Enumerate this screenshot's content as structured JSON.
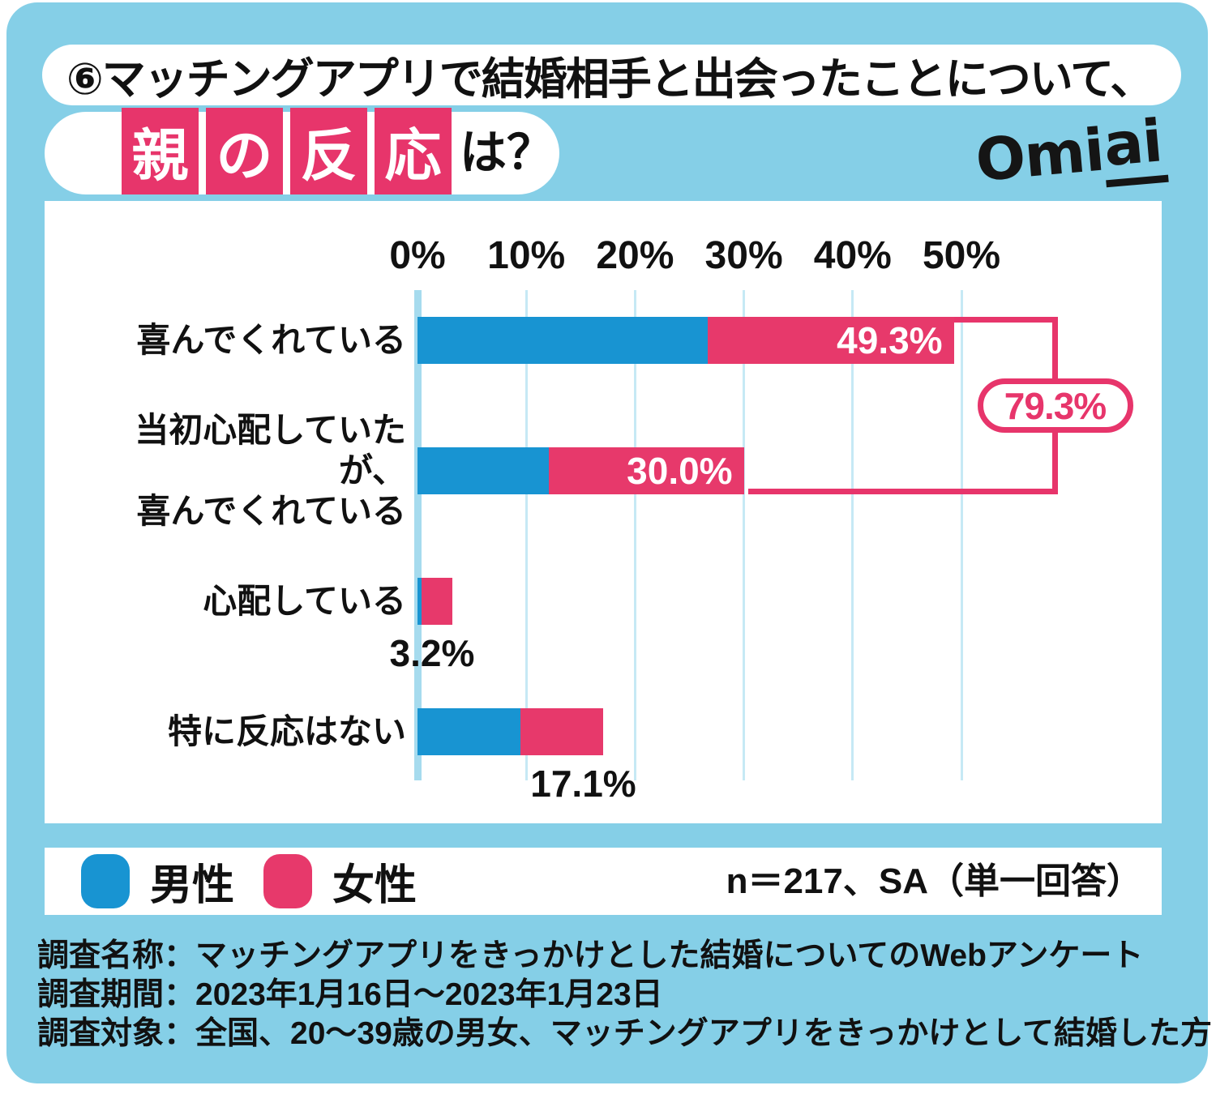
{
  "colors": {
    "background": "#85CFE7",
    "panel": "#FFFFFF",
    "male": "#1894D2",
    "female": "#E7396B",
    "accent": "#E7356B",
    "grid": "#C6E9F5",
    "grid_zero": "#A6DBEE",
    "text": "#111111"
  },
  "header": {
    "title_line1": "⑥マッチングアプリで結婚相手と出会ったことについて、",
    "highlight_chars": [
      "親",
      "の",
      "反",
      "応"
    ],
    "title_line2_suffix": "は？",
    "brand_prefix": "Omi",
    "brand_underlined": "ai"
  },
  "chart_data": {
    "type": "bar",
    "orientation": "horizontal",
    "stacked": true,
    "title": "マッチングアプリで結婚相手と出会ったことについて、親の反応は？",
    "categories": [
      "喜んでくれている",
      "当初心配していたが、\n喜んでくれている",
      "心配している",
      "特に反応はない"
    ],
    "series": [
      {
        "name": "男性",
        "color": "#1894D2",
        "values": [
          26.7,
          12.1,
          0.4,
          9.5
        ]
      },
      {
        "name": "女性",
        "color": "#E7396B",
        "values": [
          22.6,
          17.9,
          2.8,
          7.6
        ]
      }
    ],
    "totals": [
      49.3,
      30.0,
      3.2,
      17.1
    ],
    "total_labels": [
      "49.3%",
      "30.0%",
      "3.2%",
      "17.1%"
    ],
    "total_label_position": [
      "inside",
      "inside",
      "below",
      "below"
    ],
    "x_ticks": [
      0,
      10,
      20,
      30,
      40,
      50
    ],
    "x_tick_labels": [
      "0%",
      "10%",
      "20%",
      "30%",
      "40%",
      "50%"
    ],
    "xlim": [
      0,
      50
    ],
    "grid": true,
    "legend_position": "bottom",
    "callout": {
      "label": "79.3%",
      "combines": [
        0,
        1
      ]
    }
  },
  "legend": {
    "items": [
      {
        "label": "男性",
        "color": "#1894D2"
      },
      {
        "label": "女性",
        "color": "#E7396B"
      }
    ],
    "note": "n＝217、SA（単一回答）"
  },
  "footer": {
    "lines": [
      "調査名称：マッチングアプリをきっかけとした結婚についてのWebアンケート",
      "調査期間：2023年1月16日～2023年1月23日",
      "調査対象：全国、20～39歳の男女、マッチングアプリをきっかけとして結婚した方"
    ]
  }
}
